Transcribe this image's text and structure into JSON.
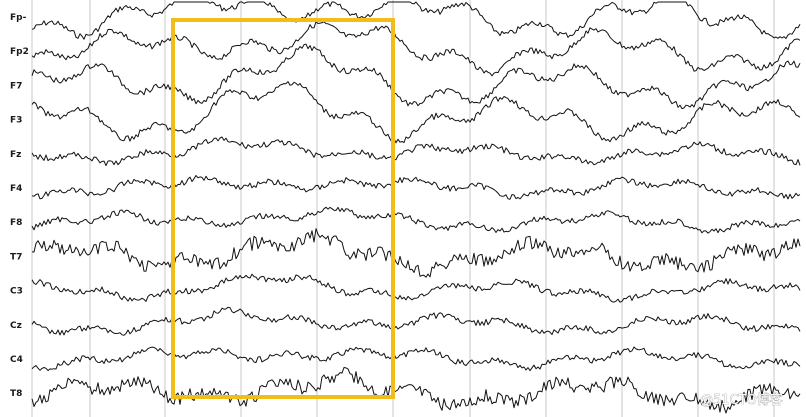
{
  "viewer": {
    "channels": [
      "Fp1",
      "Fp2",
      "F7",
      "F3",
      "Fz",
      "F4",
      "F8",
      "T7",
      "C3",
      "Cz",
      "C4",
      "T8"
    ],
    "channel_label_shown": [
      "Fp-",
      "Fp2",
      "F7",
      "F3",
      "Fz",
      "F4",
      "F8",
      "T7",
      "C3",
      "Cz",
      "C4",
      "T8"
    ],
    "highlight_color": "#f2bd1a",
    "trace_color": "#111111",
    "grid_color": "#c8c8c8",
    "grid": true
  },
  "watermark": {
    "text": "@51CTO博客"
  }
}
